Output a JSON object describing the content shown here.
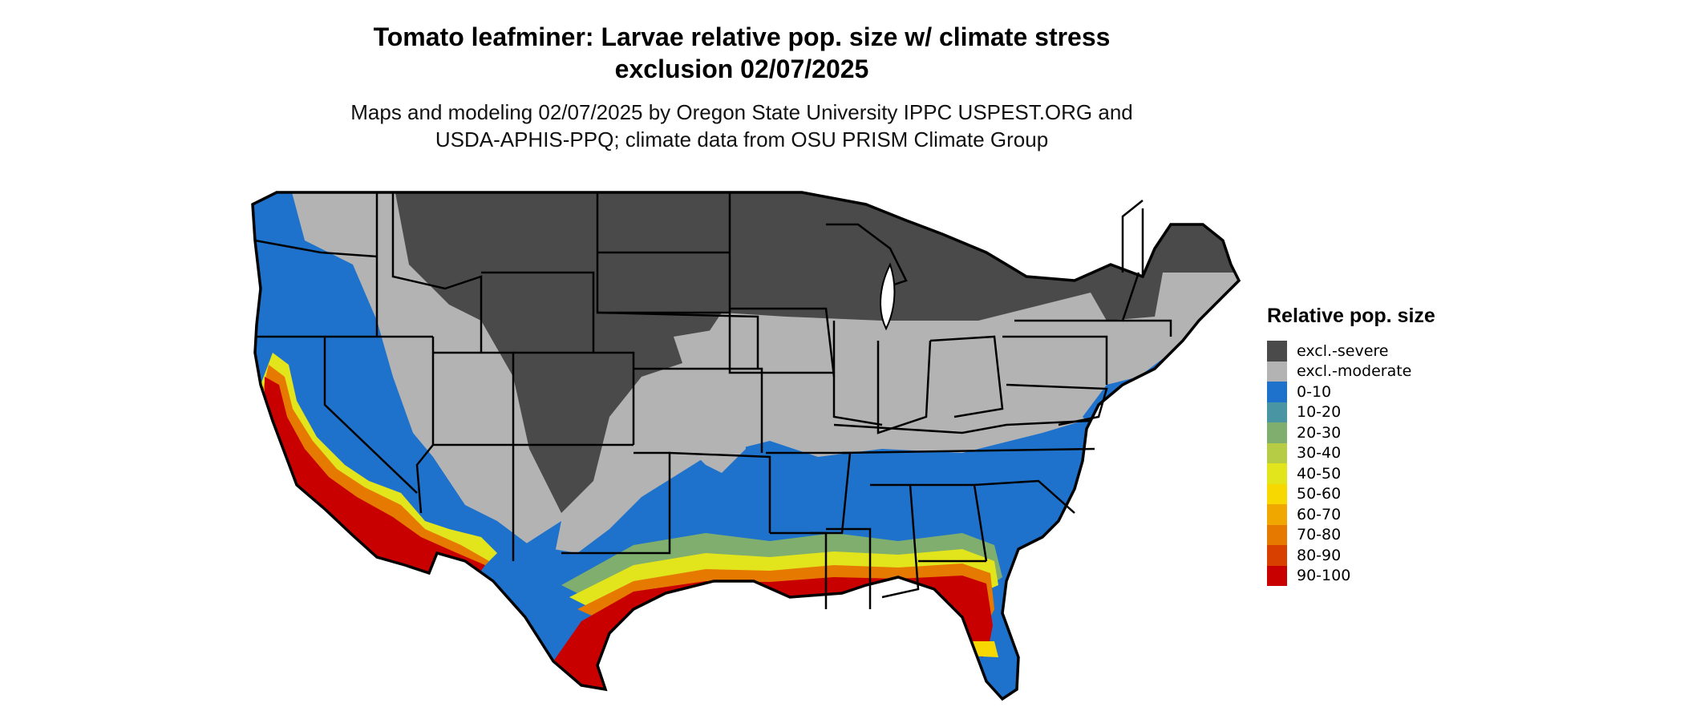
{
  "title_line1": "Tomato leafminer: Larvae relative pop. size w/ climate stress",
  "title_line2": "exclusion 02/07/2025",
  "subtitle_line1": "Maps and modeling 02/07/2025 by Oregon State University IPPC USPEST.ORG and",
  "subtitle_line2": "USDA-APHIS-PPQ; climate data from OSU PRISM Climate Group",
  "legend": {
    "title": "Relative pop. size",
    "items": [
      {
        "label": "excl.-severe",
        "color": "#4a4a4a"
      },
      {
        "label": "excl.-moderate",
        "color": "#b3b3b3"
      },
      {
        "label": "0-10",
        "color": "#1f72cc"
      },
      {
        "label": "10-20",
        "color": "#4a95a3"
      },
      {
        "label": "20-30",
        "color": "#7fae6e"
      },
      {
        "label": "30-40",
        "color": "#b5cc44"
      },
      {
        "label": "40-50",
        "color": "#e2e41c"
      },
      {
        "label": "50-60",
        "color": "#f7d800"
      },
      {
        "label": "60-70",
        "color": "#f0a800"
      },
      {
        "label": "70-80",
        "color": "#e67a00"
      },
      {
        "label": "80-90",
        "color": "#d84000"
      },
      {
        "label": "90-100",
        "color": "#c90000"
      }
    ]
  }
}
